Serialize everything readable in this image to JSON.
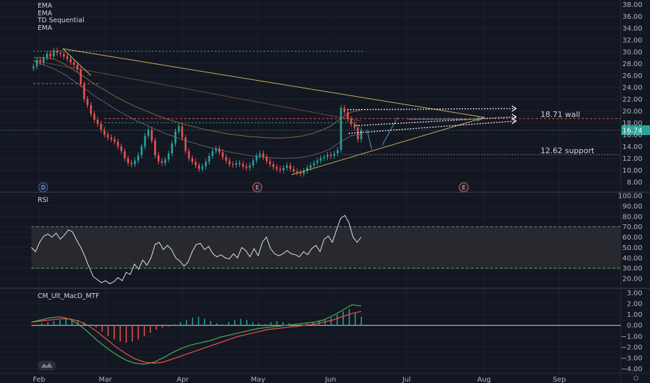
{
  "legend": [
    "EMA",
    "EMA",
    "TD Sequential",
    "EMA"
  ],
  "rsi_label": "RSI",
  "macd_label": "CM_Ult_MacD_MTF",
  "annotations": {
    "wall": "18.71 wall",
    "support": "12.62 support",
    "last_price": "16.74"
  },
  "event_markers": [
    "D",
    "E",
    "E"
  ],
  "colors": {
    "background": "#131722",
    "up": "#26a69a",
    "down": "#ef5350",
    "grid": "#1e222d",
    "text": "#b2b5be",
    "td_up": "#26a69a",
    "td_down": "#ef5350"
  },
  "chart_data": [
    {
      "type": "candlestick",
      "x_ticks": [
        "Feb",
        "Mar",
        "Apr",
        "May",
        "Jun",
        "Jul",
        "Aug",
        "Sep"
      ],
      "y_ticks": [
        8.0,
        10.0,
        12.0,
        14.0,
        16.0,
        18.0,
        20.0,
        22.0,
        24.0,
        26.0,
        28.0,
        30.0,
        32.0,
        34.0,
        36.0,
        38.0
      ],
      "ylim": [
        6.5,
        38.5
      ],
      "last_price": 16.74,
      "levels": {
        "wall": 18.71,
        "support": 12.62
      },
      "close": [
        27.5,
        28.6,
        28.2,
        29.0,
        29.7,
        29.2,
        30.2,
        29.8,
        29.6,
        29.2,
        28.8,
        28.2,
        27.8,
        27.0,
        24.5,
        22.0,
        21.0,
        19.5,
        18.5,
        17.8,
        16.8,
        16.0,
        15.5,
        15.2,
        14.8,
        14.0,
        13.2,
        12.0,
        11.2,
        11.0,
        11.6,
        12.5,
        14.0,
        15.8,
        16.8,
        15.0,
        12.5,
        11.5,
        11.2,
        11.8,
        12.8,
        14.5,
        16.5,
        17.4,
        15.5,
        13.2,
        12.0,
        11.4,
        10.8,
        10.2,
        10.6,
        11.4,
        12.4,
        13.2,
        13.6,
        13.0,
        12.2,
        11.6,
        11.0,
        10.9,
        11.2,
        11.0,
        10.6,
        10.4,
        10.8,
        11.6,
        12.4,
        12.8,
        12.2,
        11.5,
        11.0,
        10.5,
        10.2,
        10.0,
        10.4,
        10.8,
        10.2,
        9.8,
        9.6,
        9.4,
        9.9,
        10.4,
        10.8,
        11.2,
        11.6,
        12.0,
        12.2,
        12.6,
        12.4,
        12.8,
        13.4,
        20.5,
        19.8,
        18.6,
        17.8,
        17.2,
        15.2,
        16.74
      ],
      "ema_values": [
        28.4,
        27.8,
        27.1,
        26.2,
        25.0,
        23.8,
        22.5,
        21.4,
        20.3,
        19.3,
        18.4,
        17.6,
        16.8,
        16.1,
        15.5,
        14.9,
        14.4,
        13.9,
        13.5,
        13.1,
        12.8,
        12.5,
        12.3,
        12.1,
        12.0,
        12.0,
        12.1,
        12.4,
        12.9,
        13.6,
        14.8,
        15.8,
        16.1
      ]
    },
    {
      "type": "line",
      "name": "RSI",
      "y_ticks": [
        20.0,
        30.0,
        40.0,
        50.0,
        60.0,
        70.0,
        80.0,
        90.0,
        100.0
      ],
      "ylim": [
        12,
        102
      ],
      "band": [
        30,
        70
      ],
      "values": [
        50,
        46,
        55,
        61,
        63,
        60,
        64,
        58,
        62,
        67,
        65,
        57,
        50,
        41,
        31,
        22,
        19,
        16,
        18,
        15,
        17,
        21,
        18,
        26,
        24,
        34,
        29,
        38,
        33,
        40,
        53,
        55,
        48,
        52,
        48,
        40,
        37,
        32,
        36,
        46,
        53,
        54,
        48,
        51,
        44,
        41,
        43,
        40,
        39,
        44,
        40,
        50,
        47,
        41,
        49,
        42,
        55,
        60,
        49,
        44,
        42,
        44,
        47,
        44,
        43,
        41,
        46,
        43,
        49,
        52,
        46,
        58,
        61,
        55,
        67,
        78,
        81,
        74,
        60,
        55,
        60
      ]
    },
    {
      "type": "bar+line",
      "name": "CM_Ult_MacD_MTF",
      "y_ticks": [
        -4.0,
        -3.0,
        -2.0,
        -1.0,
        0.0,
        1.0,
        2.0,
        3.0
      ],
      "ylim": [
        -4.3,
        3.3
      ],
      "histogram": [
        0.2,
        0.3,
        0.4,
        0.5,
        0.6,
        0.6,
        0.5,
        0.3,
        0.1,
        -0.2,
        -0.6,
        -1.0,
        -1.3,
        -1.5,
        -1.6,
        -1.5,
        -1.3,
        -1.0,
        -0.7,
        -0.4,
        -0.2,
        -0.1,
        0.1,
        0.3,
        0.5,
        0.7,
        0.8,
        0.6,
        0.4,
        0.2,
        0.1,
        0.3,
        0.5,
        0.6,
        0.5,
        0.3,
        0.2,
        0.1,
        0.3,
        0.4,
        0.3,
        0.2,
        0.1,
        0.1,
        0.2,
        0.3,
        0.4,
        0.5,
        0.7,
        1.0,
        1.3,
        1.5,
        1.1,
        0.8
      ],
      "macd_line": [
        0.3,
        0.5,
        0.7,
        0.8,
        0.6,
        0.1,
        -0.6,
        -1.4,
        -2.1,
        -2.7,
        -3.2,
        -3.5,
        -3.6,
        -3.4,
        -3.0,
        -2.5,
        -2.1,
        -1.8,
        -1.6,
        -1.4,
        -1.1,
        -0.9,
        -0.7,
        -0.5,
        -0.3,
        -0.2,
        -0.1,
        0.0,
        0.1,
        0.2,
        0.3,
        0.5,
        0.9,
        1.4,
        1.9,
        1.8
      ],
      "signal_line": [
        0.3,
        0.4,
        0.5,
        0.6,
        0.6,
        0.4,
        0.0,
        -0.6,
        -1.3,
        -2.0,
        -2.6,
        -3.1,
        -3.4,
        -3.5,
        -3.4,
        -3.1,
        -2.8,
        -2.5,
        -2.2,
        -1.9,
        -1.6,
        -1.3,
        -1.0,
        -0.8,
        -0.6,
        -0.4,
        -0.3,
        -0.2,
        -0.1,
        0.0,
        0.1,
        0.3,
        0.5,
        0.8,
        1.1,
        1.3
      ]
    }
  ]
}
